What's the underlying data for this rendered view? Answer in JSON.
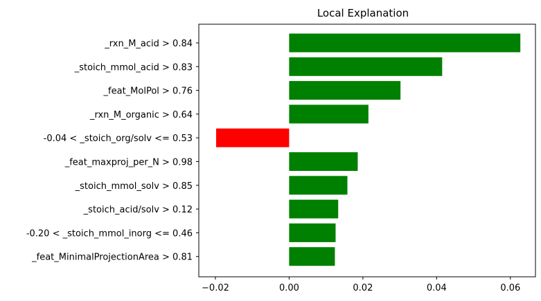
{
  "chart_data": {
    "type": "bar",
    "orientation": "horizontal",
    "title": "Local Explanation",
    "xlabel": "",
    "ylabel": "",
    "categories": [
      "_rxn_M_acid > 0.84",
      "_stoich_mmol_acid > 0.83",
      "_feat_MolPol > 0.76",
      "_rxn_M_organic > 0.64",
      "-0.04 < _stoich_org/solv <= 0.53",
      "_feat_maxproj_per_N > 0.98",
      "_stoich_mmol_solv > 0.85",
      "_stoich_acid/solv > 0.12",
      "-0.20 < _stoich_mmol_inorg <= 0.46",
      "_feat_MinimalProjectionArea > 0.81"
    ],
    "values": [
      0.0627,
      0.0415,
      0.0302,
      0.0215,
      -0.0198,
      0.0186,
      0.0158,
      0.0133,
      0.0126,
      0.0124
    ],
    "xlim": [
      -0.0245,
      0.0668
    ],
    "xticks": [
      -0.02,
      0.0,
      0.02,
      0.04,
      0.06
    ],
    "xtick_labels": [
      "−0.02",
      "0.00",
      "0.02",
      "0.04",
      "0.06"
    ],
    "grid": false,
    "legend": "none",
    "colors": {
      "positive": "#008000",
      "negative": "#ff0000"
    }
  }
}
